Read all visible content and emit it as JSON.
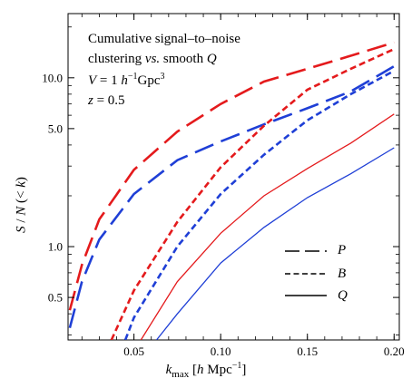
{
  "chart_data": {
    "type": "line",
    "annotations": {
      "line1": "Cumulative signal–to–noise",
      "line2_pre": "clustering ",
      "line2_vs": "vs.",
      "line2_post": " smooth ",
      "line2_q": "Q",
      "line3_pre": "V",
      "line3_eq": " = 1 ",
      "line3_h": "h",
      "line3_sup": "−1",
      "line3_unit": "Gpc",
      "line3_sup2": "3",
      "line4_z": "z",
      "line4_eq": " = 0.5"
    },
    "xlabel": {
      "k": "k",
      "sub": "max",
      "pre": " [",
      "h": "h",
      "unit": " Mpc",
      "sup": "−1",
      "post": "]"
    },
    "ylabel": {
      "S": "S",
      "slash": " / ",
      "N": "N",
      "rest": " (< ",
      "k": "k",
      "close": ")"
    },
    "xlim": [
      0.012,
      0.203
    ],
    "ylim": [
      0.28,
      24
    ],
    "yscale": "log",
    "xticks": [
      0.05,
      0.1,
      0.15,
      0.2
    ],
    "xtick_labels": [
      "0.05",
      "0.10",
      "0.15",
      "0.20"
    ],
    "yticks": [
      0.5,
      1.0,
      5.0,
      10.0
    ],
    "ytick_labels": [
      "0.5",
      "1.0",
      "5.0",
      "10.0"
    ],
    "grid": false,
    "legend": {
      "placement": "lower-right",
      "entries": [
        {
          "label": "P",
          "style": "long-dash"
        },
        {
          "label": "B",
          "style": "short-dash"
        },
        {
          "label": "Q",
          "style": "solid"
        }
      ]
    },
    "series": [
      {
        "color": "#e41a1c",
        "style": "long-dash",
        "x": [
          0.013,
          0.02,
          0.03,
          0.05,
          0.075,
          0.1,
          0.125,
          0.15,
          0.175,
          0.2
        ],
        "y": [
          0.42,
          0.78,
          1.45,
          2.85,
          4.8,
          7.0,
          9.5,
          11.3,
          13.5,
          16.2
        ]
      },
      {
        "color": "#1f3fd6",
        "style": "long-dash",
        "x": [
          0.013,
          0.02,
          0.03,
          0.05,
          0.075,
          0.1,
          0.125,
          0.15,
          0.175,
          0.2
        ],
        "y": [
          0.33,
          0.62,
          1.1,
          2.05,
          3.25,
          4.2,
          5.3,
          6.6,
          8.3,
          11.7
        ]
      },
      {
        "color": "#e41a1c",
        "style": "short-dash",
        "x": [
          0.037,
          0.05,
          0.075,
          0.1,
          0.125,
          0.15,
          0.175,
          0.2
        ],
        "y": [
          0.28,
          0.55,
          1.4,
          2.95,
          5.2,
          8.5,
          11.3,
          14.8
        ]
      },
      {
        "color": "#1f3fd6",
        "style": "short-dash",
        "x": [
          0.045,
          0.05,
          0.075,
          0.1,
          0.125,
          0.15,
          0.175,
          0.2
        ],
        "y": [
          0.28,
          0.38,
          1.0,
          2.05,
          3.5,
          5.6,
          8.0,
          11.0
        ]
      },
      {
        "color": "#e41a1c",
        "style": "solid",
        "x": [
          0.054,
          0.075,
          0.1,
          0.125,
          0.15,
          0.175,
          0.2
        ],
        "y": [
          0.28,
          0.62,
          1.2,
          2.0,
          2.9,
          4.1,
          6.1
        ]
      },
      {
        "color": "#1f3fd6",
        "style": "solid",
        "x": [
          0.063,
          0.075,
          0.1,
          0.125,
          0.15,
          0.175,
          0.2
        ],
        "y": [
          0.28,
          0.4,
          0.8,
          1.3,
          1.95,
          2.7,
          3.85
        ]
      }
    ]
  }
}
